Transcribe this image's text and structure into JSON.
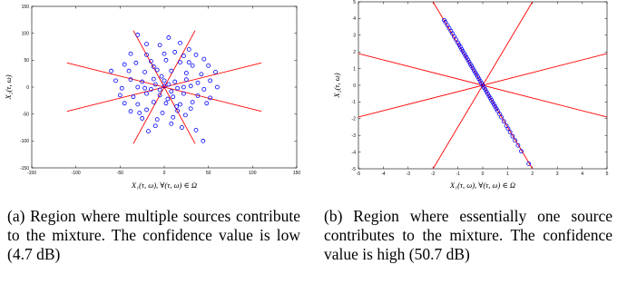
{
  "colors": {
    "line": "#ff0000",
    "marker": "#0000ff",
    "axis": "#000000"
  },
  "panels": [
    {
      "xlabel": "X₁(τ, ω), ∀(τ, ω) ∈ Ω",
      "ylabel": "X₂(τ, ω)",
      "caption": "(a) Region where multiple sources contribute to the mixture. The confidence value is low (4.7 dB)"
    },
    {
      "xlabel": "X₁(τ, ω), ∀(τ, ω) ∈ Ω",
      "ylabel": "X₂(τ, ω)",
      "caption": "(b) Region where essentially one source contributes to the mixture. The confidence value is high (50.7 dB)"
    }
  ],
  "chart_data": [
    {
      "type": "scatter",
      "xlim": [
        -150,
        150
      ],
      "ylim": [
        -150,
        150
      ],
      "xticks": [
        -150,
        -100,
        -50,
        0,
        50,
        100,
        150
      ],
      "yticks": [
        -150,
        -100,
        -50,
        0,
        50,
        100,
        150
      ],
      "xlabel": "X₁(τ, ω), ∀(τ, ω) ∈ Ω",
      "ylabel": "X₂(τ, ω)",
      "grid": false,
      "lines": [
        {
          "x": [
            -110,
            110
          ],
          "y": [
            45,
            -45
          ]
        },
        {
          "x": [
            -110,
            110
          ],
          "y": [
            -45,
            45
          ]
        },
        {
          "x": [
            -35,
            35
          ],
          "y": [
            -105,
            105
          ]
        },
        {
          "x": [
            -35,
            35
          ],
          "y": [
            105,
            -105
          ]
        }
      ],
      "points": [
        [
          -30,
          97
        ],
        [
          -20,
          80
        ],
        [
          -5,
          78
        ],
        [
          5,
          92
        ],
        [
          18,
          82
        ],
        [
          28,
          70
        ],
        [
          -38,
          62
        ],
        [
          -20,
          60
        ],
        [
          0,
          62
        ],
        [
          12,
          65
        ],
        [
          22,
          58
        ],
        [
          36,
          60
        ],
        [
          45,
          52
        ],
        [
          -45,
          42
        ],
        [
          -32,
          45
        ],
        [
          -15,
          48
        ],
        [
          2,
          50
        ],
        [
          18,
          46
        ],
        [
          32,
          40
        ],
        [
          50,
          40
        ],
        [
          -60,
          30
        ],
        [
          -40,
          30
        ],
        [
          -22,
          28
        ],
        [
          -8,
          32
        ],
        [
          8,
          30
        ],
        [
          25,
          26
        ],
        [
          42,
          24
        ],
        [
          58,
          28
        ],
        [
          -55,
          12
        ],
        [
          -38,
          14
        ],
        [
          -25,
          10
        ],
        [
          -12,
          15
        ],
        [
          0,
          12
        ],
        [
          12,
          10
        ],
        [
          25,
          14
        ],
        [
          38,
          8
        ],
        [
          52,
          12
        ],
        [
          -48,
          -2
        ],
        [
          -30,
          0
        ],
        [
          -15,
          -4
        ],
        [
          0,
          2
        ],
        [
          15,
          -2
        ],
        [
          30,
          2
        ],
        [
          45,
          -4
        ],
        [
          60,
          0
        ],
        [
          -50,
          -15
        ],
        [
          -35,
          -18
        ],
        [
          -20,
          -12
        ],
        [
          -5,
          -15
        ],
        [
          10,
          -18
        ],
        [
          22,
          -12
        ],
        [
          38,
          -16
        ],
        [
          52,
          -20
        ],
        [
          -45,
          -30
        ],
        [
          -30,
          -32
        ],
        [
          -12,
          -28
        ],
        [
          2,
          -30
        ],
        [
          18,
          -32
        ],
        [
          32,
          -28
        ],
        [
          48,
          -30
        ],
        [
          -38,
          -45
        ],
        [
          -20,
          -42
        ],
        [
          -2,
          -48
        ],
        [
          15,
          -44
        ],
        [
          30,
          -40
        ],
        [
          -25,
          -58
        ],
        [
          -8,
          -60
        ],
        [
          10,
          -56
        ],
        [
          24,
          -52
        ],
        [
          -10,
          -72
        ],
        [
          8,
          -68
        ],
        [
          20,
          -75
        ],
        [
          -18,
          -82
        ],
        [
          36,
          -80
        ],
        [
          44,
          -100
        ],
        [
          -10,
          5
        ],
        [
          -5,
          -5
        ],
        [
          5,
          5
        ],
        [
          8,
          -8
        ],
        [
          -3,
          20
        ],
        [
          4,
          -22
        ],
        [
          -22,
          -2
        ],
        [
          22,
          0
        ],
        [
          -12,
          38
        ],
        [
          14,
          -36
        ],
        [
          -28,
          -48
        ],
        [
          28,
          46
        ]
      ]
    },
    {
      "type": "scatter",
      "xlim": [
        -5,
        5
      ],
      "ylim": [
        -5,
        5
      ],
      "xticks": [
        -5,
        -4,
        -3,
        -2,
        -1,
        0,
        1,
        2,
        3,
        4,
        5
      ],
      "yticks": [
        -5,
        -4,
        -3,
        -2,
        -1,
        0,
        1,
        2,
        3,
        4,
        5
      ],
      "xlabel": "X₁(τ, ω), ∀(τ, ω) ∈ Ω",
      "ylabel": "X₂(τ, ω)",
      "grid": false,
      "lines": [
        {
          "x": [
            -5,
            5
          ],
          "y": [
            1.9,
            -1.9
          ]
        },
        {
          "x": [
            -5,
            5
          ],
          "y": [
            -1.9,
            1.9
          ]
        },
        {
          "x": [
            -2,
            2
          ],
          "y": [
            -5,
            5
          ]
        },
        {
          "x": [
            -2,
            2
          ],
          "y": [
            5,
            -5
          ]
        }
      ],
      "points": [
        [
          -1.55,
          3.9
        ],
        [
          -1.5,
          3.78
        ],
        [
          -1.42,
          3.6
        ],
        [
          -1.35,
          3.42
        ],
        [
          -1.28,
          3.25
        ],
        [
          -1.22,
          3.1
        ],
        [
          -1.15,
          2.92
        ],
        [
          -1.08,
          2.75
        ],
        [
          -1.0,
          2.55
        ],
        [
          -0.95,
          2.42
        ],
        [
          -0.9,
          2.3
        ],
        [
          -0.85,
          2.16
        ],
        [
          -0.8,
          2.04
        ],
        [
          -0.75,
          1.91
        ],
        [
          -0.7,
          1.78
        ],
        [
          -0.65,
          1.66
        ],
        [
          -0.6,
          1.53
        ],
        [
          -0.55,
          1.4
        ],
        [
          -0.5,
          1.27
        ],
        [
          -0.45,
          1.15
        ],
        [
          -0.4,
          1.02
        ],
        [
          -0.35,
          0.89
        ],
        [
          -0.3,
          0.76
        ],
        [
          -0.25,
          0.64
        ],
        [
          -0.2,
          0.51
        ],
        [
          -0.15,
          0.38
        ],
        [
          -0.1,
          0.25
        ],
        [
          -0.05,
          0.13
        ],
        [
          0.0,
          0.0
        ],
        [
          0.05,
          -0.13
        ],
        [
          0.1,
          -0.25
        ],
        [
          0.15,
          -0.38
        ],
        [
          0.2,
          -0.51
        ],
        [
          0.25,
          -0.64
        ],
        [
          0.3,
          -0.76
        ],
        [
          0.35,
          -0.89
        ],
        [
          0.4,
          -1.02
        ],
        [
          0.45,
          -1.15
        ],
        [
          0.5,
          -1.27
        ],
        [
          0.55,
          -1.4
        ],
        [
          0.6,
          -1.53
        ],
        [
          0.68,
          -1.73
        ],
        [
          0.75,
          -1.91
        ],
        [
          0.85,
          -2.16
        ],
        [
          0.95,
          -2.42
        ],
        [
          1.02,
          -2.6
        ],
        [
          1.1,
          -2.8
        ],
        [
          1.2,
          -3.05
        ],
        [
          1.3,
          -3.3
        ],
        [
          1.42,
          -3.6
        ],
        [
          1.55,
          -3.95
        ],
        [
          1.85,
          -4.7
        ]
      ]
    }
  ]
}
